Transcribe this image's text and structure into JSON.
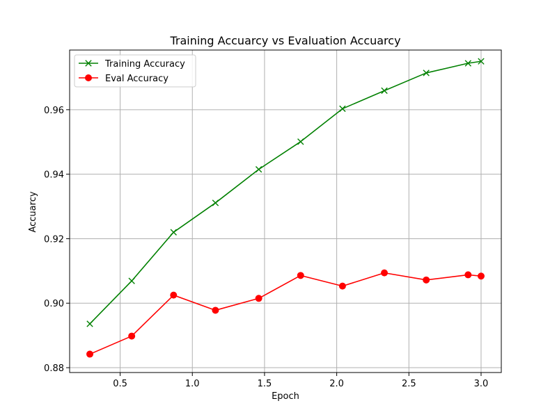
{
  "chart_data": {
    "type": "line",
    "title": "Training Accuarcy vs Evaluation Accuarcy",
    "xlabel": "Epoch",
    "ylabel": "Accuarcy",
    "xlim": [
      0.15,
      3.14
    ],
    "ylim": [
      0.8785,
      0.9785
    ],
    "xticks": [
      0.5,
      1.0,
      1.5,
      2.0,
      2.5,
      3.0
    ],
    "xtick_labels": [
      "0.5",
      "1.0",
      "1.5",
      "2.0",
      "2.5",
      "3.0"
    ],
    "yticks": [
      0.88,
      0.9,
      0.92,
      0.94,
      0.96
    ],
    "ytick_labels": [
      "0.88",
      "0.90",
      "0.92",
      "0.94",
      "0.96"
    ],
    "grid": true,
    "legend_position": "top-left",
    "series": [
      {
        "name": "Training Accuracy",
        "color": "#008000",
        "marker": "x",
        "x": [
          0.29,
          0.58,
          0.87,
          1.16,
          1.46,
          1.75,
          2.04,
          2.33,
          2.62,
          2.91,
          3.0
        ],
        "y": [
          0.8936,
          0.9069,
          0.922,
          0.9311,
          0.9415,
          0.9501,
          0.9603,
          0.9659,
          0.9714,
          0.9744,
          0.975
        ]
      },
      {
        "name": "Eval Accuracy",
        "color": "#ff0000",
        "marker": "o",
        "x": [
          0.29,
          0.58,
          0.87,
          1.16,
          1.46,
          1.75,
          2.04,
          2.33,
          2.62,
          2.91,
          3.0
        ],
        "y": [
          0.8842,
          0.8898,
          0.9025,
          0.8978,
          0.9015,
          0.9086,
          0.9053,
          0.9094,
          0.9072,
          0.9088,
          0.9084
        ]
      }
    ]
  }
}
